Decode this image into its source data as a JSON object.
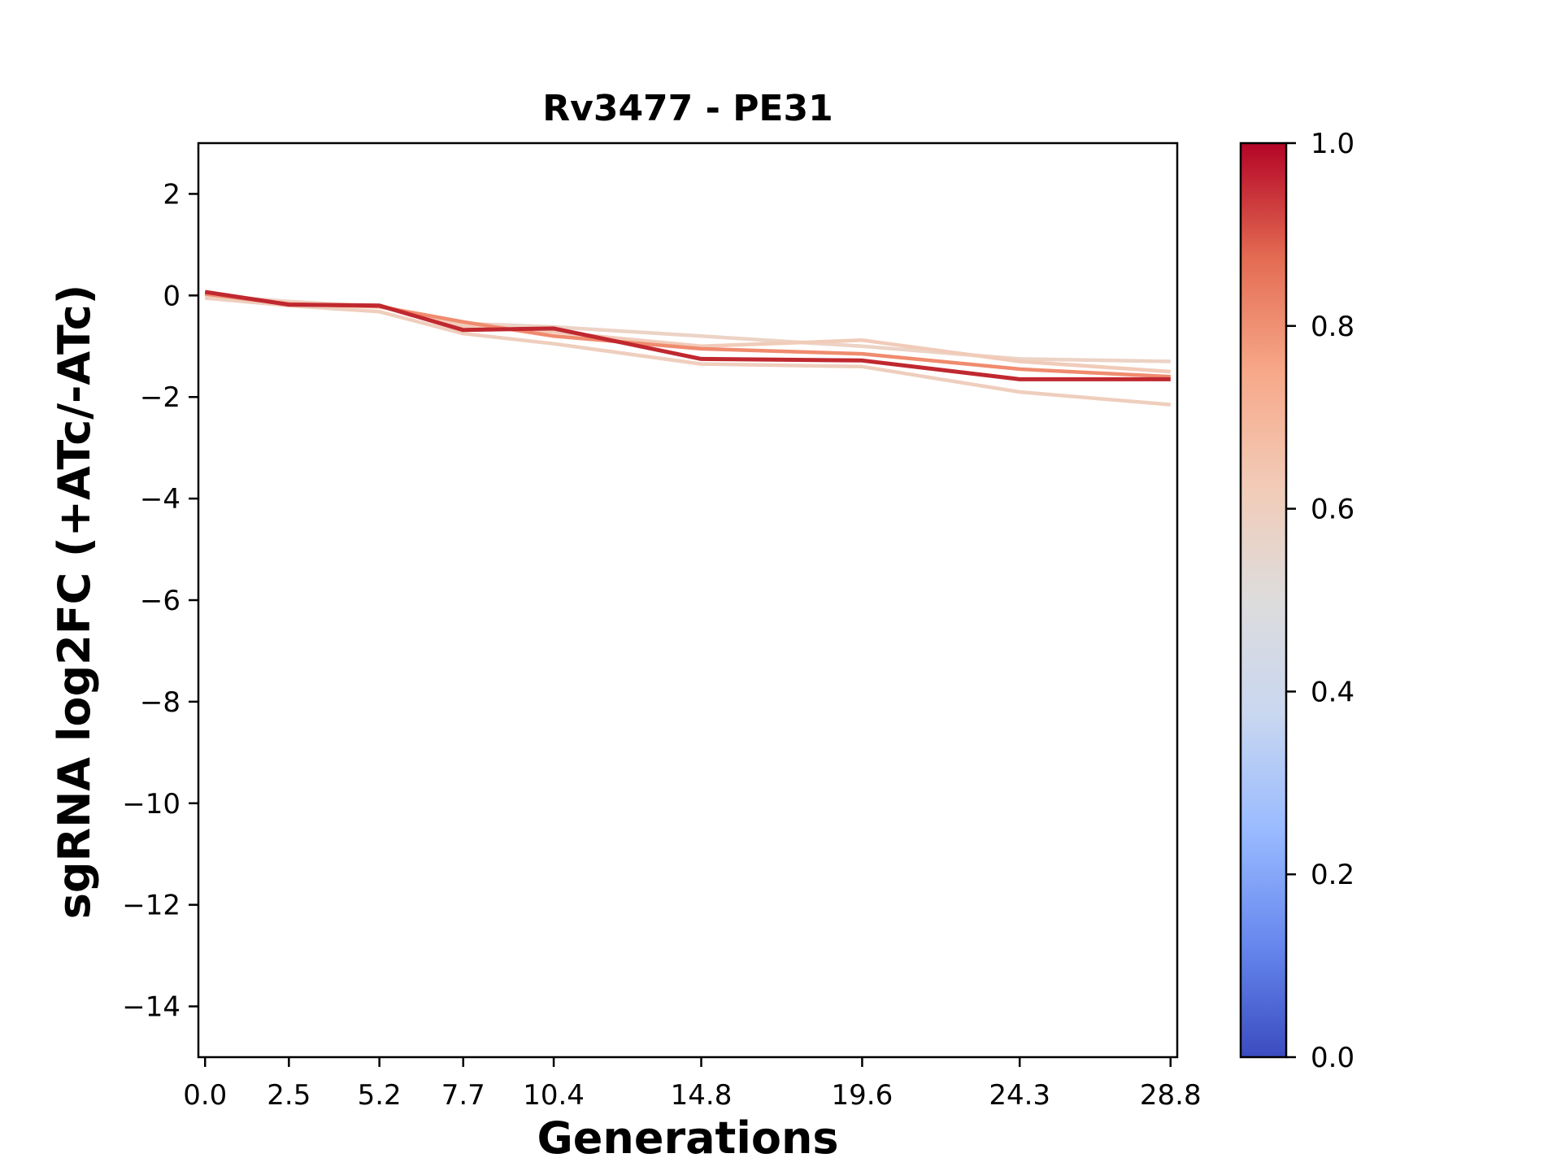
{
  "chart_data": {
    "type": "line",
    "title": "Rv3477 - PE31",
    "xlabel": "Generations",
    "ylabel": "sgRNA log2FC (+ATc/-ATc)",
    "x": [
      0.0,
      2.5,
      5.2,
      7.7,
      10.4,
      14.8,
      19.6,
      24.3,
      28.8
    ],
    "xticklabels": [
      "0.0",
      "2.5",
      "5.2",
      "7.7",
      "10.4",
      "14.8",
      "19.6",
      "24.3",
      "28.8"
    ],
    "xlim": [
      -0.2,
      29.0
    ],
    "ylim": [
      -15,
      3
    ],
    "yticks": [
      2,
      0,
      -2,
      -4,
      -6,
      -8,
      -10,
      -12,
      -14
    ],
    "yticklabels": [
      "2",
      "0",
      "−2",
      "−4",
      "−6",
      "−8",
      "−10",
      "−12",
      "−14"
    ],
    "grid": false,
    "colorbar": {
      "colormap": "coolwarm",
      "range": [
        0.0,
        1.0
      ],
      "ticks": [
        0.0,
        0.2,
        0.4,
        0.6,
        0.8,
        1.0
      ],
      "ticklabels": [
        "0.0",
        "0.2",
        "0.4",
        "0.6",
        "0.8",
        "1.0"
      ],
      "stops": [
        "#3b4cc0",
        "#6788ee",
        "#9abbff",
        "#c9d7f0",
        "#dddcdc",
        "#f2cbb7",
        "#f7a889",
        "#e36b52",
        "#b40426"
      ]
    },
    "series": [
      {
        "color_value": 0.58,
        "color": "#ecd3c5",
        "values": [
          0.0,
          -0.12,
          -0.22,
          -0.55,
          -0.62,
          -0.8,
          -1.0,
          -1.25,
          -1.3
        ]
      },
      {
        "color_value": 0.6,
        "color": "#efcebd",
        "values": [
          -0.05,
          -0.2,
          -0.32,
          -0.75,
          -0.95,
          -1.35,
          -1.4,
          -1.9,
          -2.15
        ]
      },
      {
        "color_value": 0.62,
        "color": "#f1cbb9",
        "values": [
          0.02,
          -0.15,
          -0.2,
          -0.6,
          -0.72,
          -1.0,
          -0.88,
          -1.3,
          -1.5
        ]
      },
      {
        "color_value": 0.78,
        "color": "#f08b6e",
        "values": [
          0.03,
          -0.17,
          -0.22,
          -0.52,
          -0.8,
          -1.05,
          -1.15,
          -1.45,
          -1.6
        ]
      },
      {
        "color_value": 0.95,
        "color": "#c0282f",
        "values": [
          0.07,
          -0.18,
          -0.2,
          -0.68,
          -0.65,
          -1.25,
          -1.28,
          -1.65,
          -1.65
        ]
      }
    ]
  }
}
